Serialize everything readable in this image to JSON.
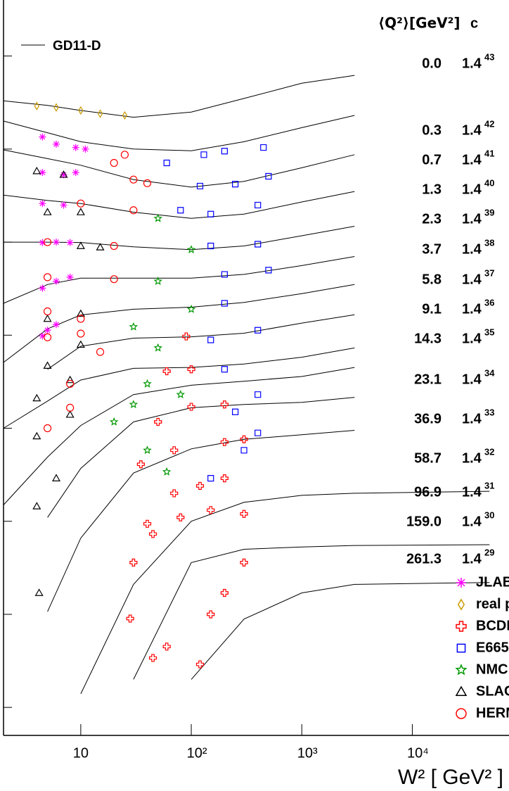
{
  "chart_data": {
    "type": "scatter",
    "x_label": "W² [ GeV² ]",
    "log_x": true,
    "log_y": true,
    "xlim": [
      2,
      75000
    ],
    "xticks": [
      10,
      {
        "value": 100,
        "label": "10²"
      },
      {
        "value": 1000,
        "label": "10³"
      },
      {
        "value": 10000,
        "label": "10⁴"
      }
    ],
    "ylim": [
      5,
      400000000
    ],
    "yticks": [
      10,
      100,
      1000,
      10000,
      100000,
      1000000,
      10000000,
      100000000
    ],
    "q2_header": "⟨Q²⟩[GeV²]",
    "c_header": "c",
    "q2_labels": [
      "0.0",
      "0.3",
      "0.7",
      "1.3",
      "2.3",
      "3.7",
      "5.8",
      "9.1",
      "14.3",
      "23.1",
      "36.9",
      "58.7",
      "96.9",
      "159.0",
      "261.3"
    ],
    "c_base": "1.4",
    "c_exponents": [
      43,
      42,
      41,
      40,
      39,
      38,
      37,
      36,
      35,
      34,
      33,
      32,
      31,
      30,
      29
    ],
    "model": {
      "name": "GD11-D",
      "color": "#000000",
      "x": [
        2,
        5,
        10,
        30,
        100,
        300,
        1000,
        3000,
        50000
      ],
      "curves": [
        [
          33000000.0,
          29500000.0,
          26000000.0,
          22000000.0,
          25000000.0,
          35000000.0,
          51000000.0,
          62000000.0,
          null
        ],
        [
          20000000.0,
          15000000.0,
          12000000.0,
          10000000.0,
          9600000.0,
          12000000.0,
          17000000.0,
          23000000.0,
          null
        ],
        [
          9800000.0,
          7900000.0,
          6700000.0,
          4700000.0,
          3900000.0,
          4500000.0,
          6300000.0,
          8700000.0,
          null
        ],
        [
          3200000.0,
          2800000.0,
          2600000.0,
          2100000.0,
          1800000.0,
          2000000.0,
          2700000.0,
          3500000.0,
          null
        ],
        [
          1000000.0,
          1000000.0,
          990000.0,
          890000.0,
          830000.0,
          910000.0,
          1170000.0,
          1480000.0,
          null
        ],
        [
          220000.0,
          350000.0,
          410000.0,
          410000.0,
          410000.0,
          450000.0,
          560000.0,
          700000.0,
          null
        ],
        [
          51000.0,
          117000.0,
          165000.0,
          190000.0,
          200000.0,
          225000.0,
          280000.0,
          350000.0,
          null
        ],
        [
          null,
          43000.0,
          76000.0,
          93000.0,
          96000.0,
          105000.0,
          135000.0,
          166000.0,
          null
        ],
        [
          10000.0,
          19600.0,
          33000.0,
          44000.0,
          45000.0,
          49000.0,
          58000.0,
          73000.0,
          null
        ],
        [
          1500.0,
          4900.0,
          10700.0,
          23000.0,
          29000.0,
          32000.0,
          36000.0,
          45000.0,
          null
        ],
        [
          null,
          1100.0,
          3700.0,
          11700.0,
          16600.0,
          18000.0,
          19000.0,
          21500.0,
          null
        ],
        [
          null,
          107,
          660,
          3300,
          6000,
          7600,
          8500,
          9500,
          null
        ],
        [
          null,
          null,
          14,
          210,
          1000,
          1600,
          1900,
          2000,
          2100
        ],
        [
          null,
          null,
          null,
          20,
          360,
          500,
          530,
          550,
          560
        ],
        [
          null,
          null,
          null,
          null,
          20,
          89,
          170,
          210,
          220
        ]
      ]
    },
    "series": [
      {
        "name": "JLAB",
        "color": "#ff00ff",
        "marker": "asterisk",
        "x": [
          4.5,
          6,
          9,
          11,
          4.5,
          7,
          9,
          4.5,
          7,
          4.5,
          6,
          8,
          4.5,
          6,
          8,
          4.5,
          5,
          6
        ],
        "values": [
          13500000.0,
          11300000.0,
          10400000.0,
          10000000.0,
          5600000.0,
          5300000.0,
          5600000.0,
          2600000.0,
          2500000.0,
          990000.0,
          1000000.0,
          990000.0,
          320000.0,
          380000.0,
          420000.0,
          98000.0,
          113000.0,
          130000.0
        ]
      },
      {
        "name": "real photon",
        "color": "#c89b00",
        "marker": "diamond",
        "x": [
          4,
          6,
          10,
          15,
          25
        ],
        "values": [
          29000000.0,
          28000000.0,
          26000000.0,
          24000000.0,
          23000000.0
        ]
      },
      {
        "name": "BCDMS",
        "color": "#ff0000",
        "marker": "cross",
        "x": [
          90,
          60,
          100,
          50,
          100,
          200,
          35,
          70,
          200,
          300,
          40,
          70,
          120,
          200,
          30,
          45,
          80,
          150,
          300,
          28,
          45,
          60,
          120,
          150,
          200,
          300
        ],
        "values": [
          97000.0,
          41000.0,
          43000.0,
          11700.0,
          17000.0,
          18000.0,
          4100.0,
          5800.0,
          7100.0,
          7600.0,
          940,
          2000,
          2400,
          2900,
          360,
          730,
          1100,
          1320,
          1200,
          90,
          34,
          45,
          29,
          100,
          170,
          360
        ]
      },
      {
        "name": "E665",
        "color": "#0000ff",
        "marker": "square",
        "x": [
          60,
          130,
          200,
          450,
          120,
          250,
          500,
          80,
          150,
          400,
          150,
          400,
          200,
          500,
          200,
          150,
          400,
          200,
          250,
          400,
          300,
          400,
          150
        ],
        "values": [
          7100000.0,
          8700000.0,
          9500000.0,
          10400000.0,
          4000000.0,
          4200000.0,
          5100000.0,
          2200000.0,
          2000000.0,
          2500000.0,
          910000.0,
          950000.0,
          450000.0,
          500000.0,
          220000.0,
          89000.0,
          113000.0,
          43000.0,
          15000.0,
          23000.0,
          5800.0,
          8900.0,
          2900.0
        ]
      },
      {
        "name": "NMC",
        "color": "#009900",
        "marker": "star",
        "x": [
          50,
          100,
          50,
          100,
          30,
          50,
          40,
          30,
          20,
          80,
          40,
          60
        ],
        "values": [
          1800000.0,
          830000.0,
          380000.0,
          190000.0,
          123000.0,
          73000.0,
          30000.0,
          18000.0,
          11700.0,
          23000.0,
          5800.0,
          3400.0
        ]
      },
      {
        "name": "SLAC",
        "color": "#000000",
        "marker": "triangle",
        "x": [
          4,
          7,
          5,
          10,
          10,
          15,
          5,
          10,
          5,
          10,
          4,
          8,
          4,
          8,
          4,
          6,
          4.2
        ],
        "values": [
          5800000.0,
          5300000.0,
          2100000.0,
          2100000.0,
          910000.0,
          880000.0,
          150000.0,
          170000.0,
          47000.0,
          79000.0,
          21000.0,
          33000.0,
          8200.0,
          14000.0,
          1450.0,
          2900.0,
          170
        ]
      },
      {
        "name": "HERMES",
        "color": "#ff0000",
        "marker": "circle",
        "x": [
          25,
          20,
          40,
          30,
          10,
          30,
          5,
          20,
          5,
          20,
          5,
          10,
          5,
          10,
          8,
          15,
          5,
          8
        ],
        "values": [
          8700000.0,
          7100000.0,
          4300000.0,
          4700000.0,
          2600000.0,
          2200000.0,
          1000000.0,
          910000.0,
          420000.0,
          400000.0,
          180000.0,
          150000.0,
          95000.0,
          104000.0,
          30000.0,
          66000.0,
          10000.0,
          16600.0
        ]
      }
    ]
  }
}
